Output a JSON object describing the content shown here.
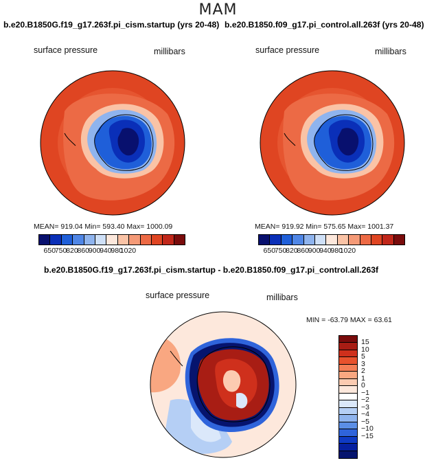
{
  "season": "MAM",
  "panels": [
    {
      "title": "b.e20.B1850G.f19_g17.263f.pi_cism.startup (yrs 20-48)",
      "variable": "surface pressure",
      "units": "millibars",
      "stats_text": "MEAN= 919.04    Min= 593.40    Max= 1000.09"
    },
    {
      "title": "b.e20.B1850.f09_g17.pi_control.all.263f (yrs 20-48)",
      "variable": "surface pressure",
      "units": "millibars",
      "stats_text": "MEAN= 919.92    Min= 575.65    Max= 1001.37"
    }
  ],
  "diff": {
    "title": "b.e20.B1850G.f19_g17.263f.pi_cism.startup - b.e20.B1850.f09_g17.pi_control.all.263f",
    "variable": "surface pressure",
    "units": "millibars",
    "stats_text": "MIN = -63.79  MAX =   63.61"
  },
  "chart_data": [
    {
      "type": "heatmap",
      "projection": "south-polar-stereographic",
      "title": "b.e20.B1850G.f19_g17.263f.pi_cism.startup (yrs 20-48)",
      "variable": "surface pressure",
      "units": "millibars",
      "mean": 919.04,
      "min": 593.4,
      "max": 1000.09,
      "contour_levels": [
        650,
        750,
        820,
        860,
        900,
        940,
        980,
        1020
      ],
      "colorbar_ticks": [
        "650",
        "750",
        "820",
        "860",
        "900",
        "940",
        "980",
        "1020"
      ],
      "colors": [
        "#08106e",
        "#0a2fb8",
        "#1f5fd9",
        "#4f86e6",
        "#8fb4ee",
        "#cfe0f7",
        "#fde8dc",
        "#fac3a6",
        "#f59a77",
        "#ed6a45",
        "#df4522",
        "#c1271a",
        "#7a0c0c"
      ]
    },
    {
      "type": "heatmap",
      "projection": "south-polar-stereographic",
      "title": "b.e20.B1850.f09_g17.pi_control.all.263f (yrs 20-48)",
      "variable": "surface pressure",
      "units": "millibars",
      "mean": 919.92,
      "min": 575.65,
      "max": 1001.37,
      "contour_levels": [
        650,
        750,
        820,
        860,
        900,
        940,
        980,
        1020
      ],
      "colorbar_ticks": [
        "650",
        "750",
        "820",
        "860",
        "900",
        "940",
        "980",
        "1020"
      ],
      "colors": [
        "#08106e",
        "#0a2fb8",
        "#1f5fd9",
        "#4f86e6",
        "#8fb4ee",
        "#cfe0f7",
        "#fde8dc",
        "#fac3a6",
        "#f59a77",
        "#ed6a45",
        "#df4522",
        "#c1271a",
        "#7a0c0c"
      ]
    },
    {
      "type": "heatmap",
      "projection": "south-polar-stereographic",
      "title": "b.e20.B1850G.f19_g17.263f.pi_cism.startup - b.e20.B1850.f09_g17.pi_control.all.263f",
      "variable": "surface pressure",
      "units": "millibars",
      "min": -63.79,
      "max": 63.61,
      "contour_levels": [
        -15,
        -10,
        -5,
        -4,
        -3,
        -2,
        -1,
        0,
        1,
        2,
        3,
        5,
        10,
        15
      ],
      "colorbar_ticks": [
        "15",
        "10",
        "5",
        "3",
        "2",
        "1",
        "0",
        "−1",
        "−2",
        "−3",
        "−4",
        "−5",
        "−10",
        "−15"
      ],
      "colors_top_to_bottom": [
        "#7a0c0c",
        "#a81d14",
        "#cf301c",
        "#e8522d",
        "#f47e56",
        "#f9a781",
        "#fccbb1",
        "#fde8dc",
        "#ffffff",
        "#dbe8fa",
        "#b5cff5",
        "#8fb4ee",
        "#5b8ee6",
        "#2f64db",
        "#0f3bc4",
        "#0620a0",
        "#06146e"
      ]
    }
  ]
}
